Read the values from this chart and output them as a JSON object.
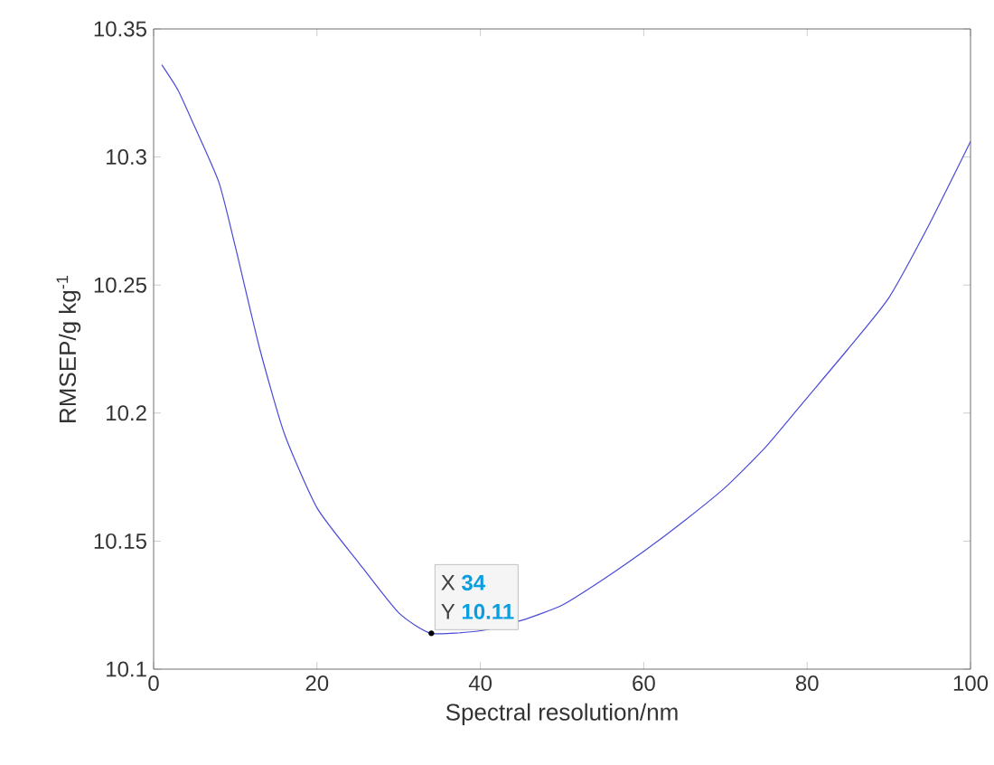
{
  "chart_data": {
    "type": "line",
    "xlabel": "Spectral resolution/nm",
    "ylabel": "RMSEP/g kg$^{-1}$",
    "x": [
      1,
      3,
      5,
      8,
      10,
      13,
      16,
      20,
      25,
      30,
      34,
      40,
      45,
      50,
      55,
      60,
      65,
      70,
      75,
      80,
      85,
      90,
      95,
      100
    ],
    "series": [
      {
        "color": "#4a4ad8",
        "values": [
          10.336,
          10.326,
          10.312,
          10.29,
          10.265,
          10.225,
          10.192,
          10.163,
          10.142,
          10.122,
          10.114,
          10.115,
          10.119,
          10.125,
          10.135,
          10.146,
          10.158,
          10.171,
          10.187,
          10.206,
          10.225,
          10.245,
          10.274,
          10.306
        ]
      }
    ],
    "xlim": [
      0,
      100
    ],
    "ylim": [
      10.1,
      10.35
    ],
    "xticks": [
      0,
      20,
      40,
      60,
      80,
      100
    ],
    "yticks": [
      10.1,
      10.15,
      10.2,
      10.25,
      10.3,
      10.35
    ],
    "grid": false,
    "marker": "none",
    "line_style": "solid",
    "annotations": [
      {
        "text": "X **34**",
        "x": 34,
        "y": 10.114
      },
      {
        "text": "Y **10.11**",
        "x": 34,
        "y": 10.114
      }
    ]
  }
}
